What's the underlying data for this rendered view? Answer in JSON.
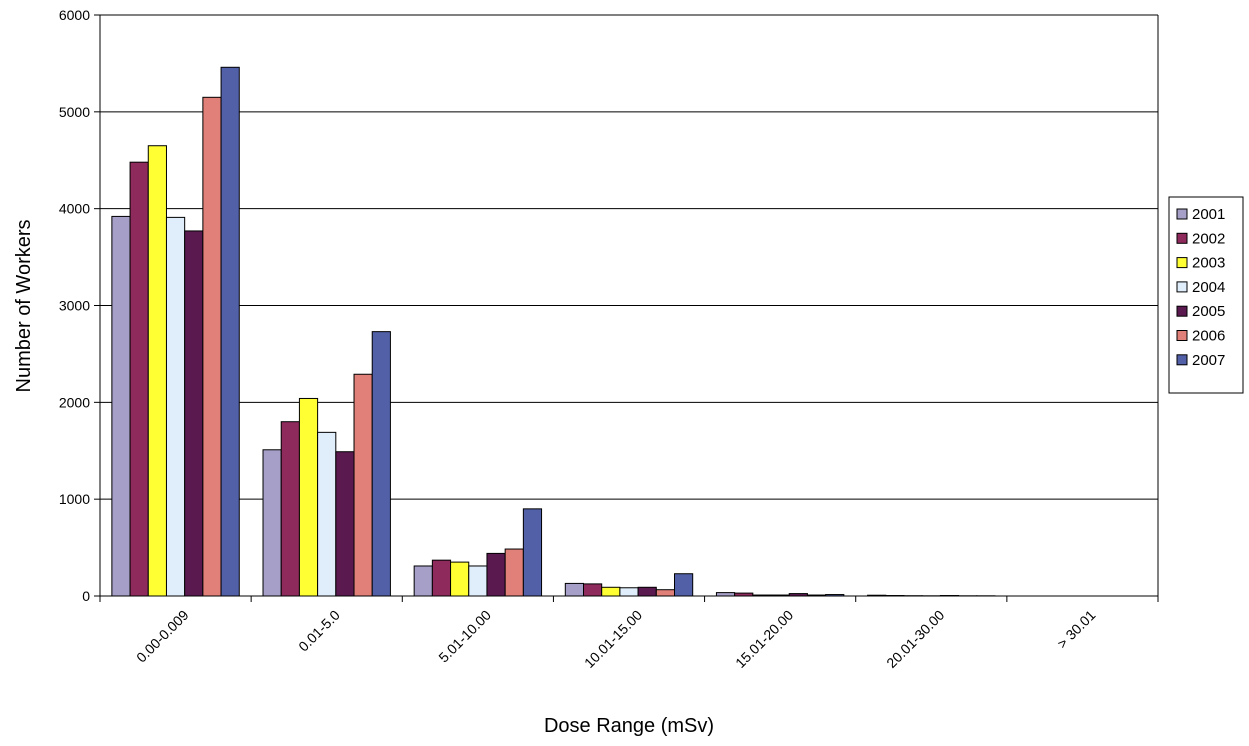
{
  "chart_data": {
    "type": "bar",
    "title": "",
    "xlabel": "Dose Range (mSv)",
    "ylabel": "Number of Workers",
    "ylim": [
      0,
      6000
    ],
    "yticks": [
      "0",
      "1000",
      "2000",
      "3000",
      "4000",
      "5000",
      "6000"
    ],
    "grid": true,
    "legend_position": "right",
    "categories": [
      "0.00-0.009",
      "0.01-5.0",
      "5.01-10.00",
      "10.01-15.00",
      "15.01-20.00",
      "20.01-30.00",
      "> 30.01"
    ],
    "series": [
      {
        "name": "2001",
        "color": "#a6a0c8",
        "values": [
          3920,
          1510,
          310,
          130,
          35,
          8,
          0
        ]
      },
      {
        "name": "2002",
        "color": "#8e2a5c",
        "values": [
          4480,
          1800,
          370,
          125,
          30,
          5,
          0
        ]
      },
      {
        "name": "2003",
        "color": "#ffff33",
        "values": [
          4650,
          2040,
          350,
          90,
          10,
          3,
          0
        ]
      },
      {
        "name": "2004",
        "color": "#dfeefa",
        "values": [
          3910,
          1690,
          310,
          85,
          10,
          2,
          0
        ]
      },
      {
        "name": "2005",
        "color": "#5a1a50",
        "values": [
          3770,
          1490,
          440,
          90,
          25,
          5,
          0
        ]
      },
      {
        "name": "2006",
        "color": "#e08078",
        "values": [
          5150,
          2290,
          485,
          65,
          10,
          2,
          0
        ]
      },
      {
        "name": "2007",
        "color": "#5260a8",
        "values": [
          5460,
          2730,
          900,
          230,
          15,
          2,
          0
        ]
      }
    ]
  }
}
